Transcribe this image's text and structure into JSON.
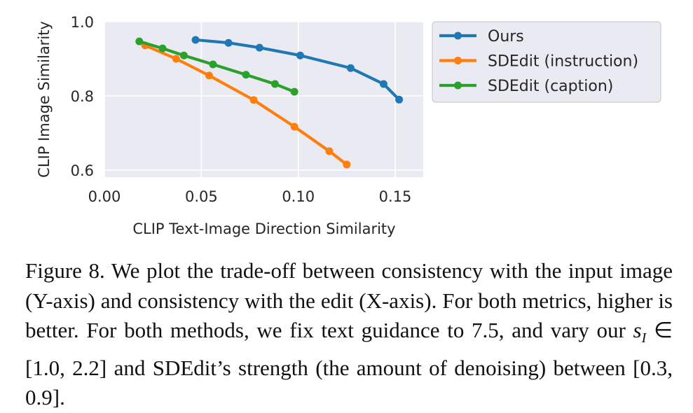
{
  "chart_data": {
    "type": "line",
    "title": "",
    "xlabel": "CLIP Text-Image Direction Similarity",
    "ylabel": "CLIP Image Similarity",
    "xlim": [
      0.0,
      0.165
    ],
    "ylim": [
      0.59,
      1.0
    ],
    "xticks": [
      "0.00",
      "0.05",
      "0.10",
      "0.15"
    ],
    "xtick_values": [
      0.0,
      0.05,
      0.1,
      0.15
    ],
    "yticks": [
      "0.6",
      "0.8",
      "1.0"
    ],
    "ytick_values": [
      0.6,
      0.8,
      1.0
    ],
    "grid": true,
    "style": "seaborn darkgrid",
    "legend_position": "outside upper right",
    "series": [
      {
        "name": "Ours",
        "color": "#1f77b4",
        "x": [
          0.047,
          0.064,
          0.08,
          0.101,
          0.127,
          0.144,
          0.152
        ],
        "y": [
          0.951,
          0.943,
          0.93,
          0.909,
          0.875,
          0.832,
          0.79
        ]
      },
      {
        "name": "SDEdit (instruction)",
        "color": "#ff7f0e",
        "x": [
          0.021,
          0.037,
          0.054,
          0.077,
          0.098,
          0.116,
          0.125
        ],
        "y": [
          0.936,
          0.9,
          0.855,
          0.789,
          0.717,
          0.651,
          0.615
        ]
      },
      {
        "name": "SDEdit (caption)",
        "color": "#2ca02c",
        "x": [
          0.018,
          0.03,
          0.041,
          0.056,
          0.073,
          0.088,
          0.098
        ],
        "y": [
          0.947,
          0.928,
          0.909,
          0.885,
          0.857,
          0.832,
          0.811
        ]
      }
    ]
  },
  "caption": {
    "label": "Figure 8.",
    "text_1": " We plot the trade-off between consistency with the input image (Y-axis) and consistency with the edit (X-axis).  For both metrics, higher is better.  For both methods, we fix text guidance to 7.5, and vary our ",
    "math_symbol": "s",
    "math_sub": "I",
    "text_2": " ∈ [1.0, 2.2] and SDEdit’s strength (the amount of denoising) between [0.3, 0.9]."
  }
}
